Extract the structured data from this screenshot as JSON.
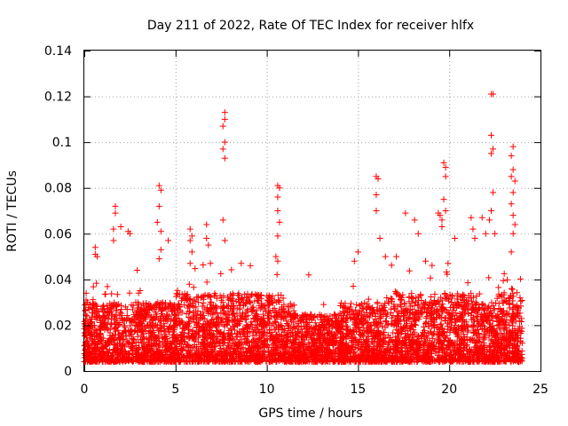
{
  "chart_data": {
    "type": "scatter",
    "title": "Day 211 of 2022, Rate Of TEC Index for receiver hlfx",
    "xlabel": "GPS time / hours",
    "ylabel": "ROTI / TECUs",
    "xlim": [
      0,
      25
    ],
    "ylim": [
      0,
      0.14
    ],
    "x_ticks": [
      0,
      5,
      10,
      15,
      20,
      25
    ],
    "y_ticks": [
      0,
      0.02,
      0.04,
      0.06,
      0.08,
      0.1,
      0.12,
      0.14
    ],
    "x_tick_labels": [
      "0",
      "5",
      "10",
      "15",
      "20",
      "25"
    ],
    "y_tick_labels": [
      "0",
      "0.02",
      "0.04",
      "0.06",
      "0.08",
      "0.1",
      "0.12",
      "0.14"
    ],
    "grid": true,
    "marker": "+",
    "series": [
      {
        "name": "ROTI",
        "color": "#ff0000",
        "description": "Dense cloud of ROTI values between 0.003 and 0.04 TECU/s over 0-24 h with sporadic spikes",
        "background_density": {
          "x_start": 0,
          "x_end": 24,
          "typical_range": [
            0.004,
            0.03
          ],
          "upper_envelope": 0.045
        },
        "spike_points": [
          {
            "x": 0.1,
            "y": 0.034
          },
          {
            "x": 0.1,
            "y": 0.031
          },
          {
            "x": 0.6,
            "y": 0.054
          },
          {
            "x": 0.6,
            "y": 0.051
          },
          {
            "x": 0.7,
            "y": 0.05
          },
          {
            "x": 1.7,
            "y": 0.072
          },
          {
            "x": 1.7,
            "y": 0.069
          },
          {
            "x": 1.6,
            "y": 0.062
          },
          {
            "x": 1.6,
            "y": 0.057
          },
          {
            "x": 2.0,
            "y": 0.063
          },
          {
            "x": 2.4,
            "y": 0.061
          },
          {
            "x": 2.5,
            "y": 0.06
          },
          {
            "x": 4.1,
            "y": 0.081
          },
          {
            "x": 4.2,
            "y": 0.079
          },
          {
            "x": 4.1,
            "y": 0.072
          },
          {
            "x": 4.0,
            "y": 0.065
          },
          {
            "x": 4.2,
            "y": 0.061
          },
          {
            "x": 4.2,
            "y": 0.053
          },
          {
            "x": 4.1,
            "y": 0.049
          },
          {
            "x": 4.6,
            "y": 0.057
          },
          {
            "x": 5.8,
            "y": 0.062
          },
          {
            "x": 5.9,
            "y": 0.059
          },
          {
            "x": 5.8,
            "y": 0.057
          },
          {
            "x": 5.9,
            "y": 0.052
          },
          {
            "x": 5.8,
            "y": 0.047
          },
          {
            "x": 6.7,
            "y": 0.064
          },
          {
            "x": 6.7,
            "y": 0.058
          },
          {
            "x": 6.8,
            "y": 0.055
          },
          {
            "x": 7.7,
            "y": 0.113
          },
          {
            "x": 7.7,
            "y": 0.11
          },
          {
            "x": 7.6,
            "y": 0.107
          },
          {
            "x": 7.7,
            "y": 0.1
          },
          {
            "x": 7.6,
            "y": 0.097
          },
          {
            "x": 7.7,
            "y": 0.093
          },
          {
            "x": 7.6,
            "y": 0.066
          },
          {
            "x": 7.7,
            "y": 0.057
          },
          {
            "x": 10.6,
            "y": 0.081
          },
          {
            "x": 10.7,
            "y": 0.08
          },
          {
            "x": 10.6,
            "y": 0.076
          },
          {
            "x": 10.6,
            "y": 0.07
          },
          {
            "x": 10.7,
            "y": 0.065
          },
          {
            "x": 10.6,
            "y": 0.059
          },
          {
            "x": 10.5,
            "y": 0.05
          },
          {
            "x": 10.6,
            "y": 0.048
          },
          {
            "x": 16.0,
            "y": 0.085
          },
          {
            "x": 16.1,
            "y": 0.084
          },
          {
            "x": 16.0,
            "y": 0.077
          },
          {
            "x": 16.0,
            "y": 0.07
          },
          {
            "x": 16.2,
            "y": 0.058
          },
          {
            "x": 16.5,
            "y": 0.05
          },
          {
            "x": 17.6,
            "y": 0.069
          },
          {
            "x": 18.1,
            "y": 0.066
          },
          {
            "x": 18.3,
            "y": 0.06
          },
          {
            "x": 19.4,
            "y": 0.069
          },
          {
            "x": 19.5,
            "y": 0.068
          },
          {
            "x": 19.6,
            "y": 0.066
          },
          {
            "x": 19.7,
            "y": 0.091
          },
          {
            "x": 19.8,
            "y": 0.089
          },
          {
            "x": 19.8,
            "y": 0.085
          },
          {
            "x": 19.7,
            "y": 0.075
          },
          {
            "x": 19.8,
            "y": 0.07
          },
          {
            "x": 19.6,
            "y": 0.063
          },
          {
            "x": 20.3,
            "y": 0.058
          },
          {
            "x": 21.2,
            "y": 0.067
          },
          {
            "x": 21.3,
            "y": 0.062
          },
          {
            "x": 21.4,
            "y": 0.058
          },
          {
            "x": 21.8,
            "y": 0.067
          },
          {
            "x": 22.0,
            "y": 0.06
          },
          {
            "x": 22.3,
            "y": 0.121
          },
          {
            "x": 22.4,
            "y": 0.121
          },
          {
            "x": 22.3,
            "y": 0.103
          },
          {
            "x": 22.4,
            "y": 0.097
          },
          {
            "x": 22.3,
            "y": 0.095
          },
          {
            "x": 22.4,
            "y": 0.078
          },
          {
            "x": 22.3,
            "y": 0.07
          },
          {
            "x": 22.2,
            "y": 0.066
          },
          {
            "x": 22.5,
            "y": 0.06
          },
          {
            "x": 23.5,
            "y": 0.098
          },
          {
            "x": 23.4,
            "y": 0.094
          },
          {
            "x": 23.5,
            "y": 0.088
          },
          {
            "x": 23.4,
            "y": 0.085
          },
          {
            "x": 23.6,
            "y": 0.083
          },
          {
            "x": 23.5,
            "y": 0.078
          },
          {
            "x": 23.4,
            "y": 0.073
          },
          {
            "x": 23.5,
            "y": 0.068
          },
          {
            "x": 23.6,
            "y": 0.064
          },
          {
            "x": 23.5,
            "y": 0.06
          },
          {
            "x": 23.4,
            "y": 0.052
          },
          {
            "x": 9.1,
            "y": 0.046
          },
          {
            "x": 8.6,
            "y": 0.047
          },
          {
            "x": 12.3,
            "y": 0.042
          },
          {
            "x": 14.8,
            "y": 0.048
          },
          {
            "x": 15.0,
            "y": 0.052
          },
          {
            "x": 17.1,
            "y": 0.05
          },
          {
            "x": 18.7,
            "y": 0.048
          },
          {
            "x": 2.9,
            "y": 0.044
          }
        ]
      }
    ]
  }
}
